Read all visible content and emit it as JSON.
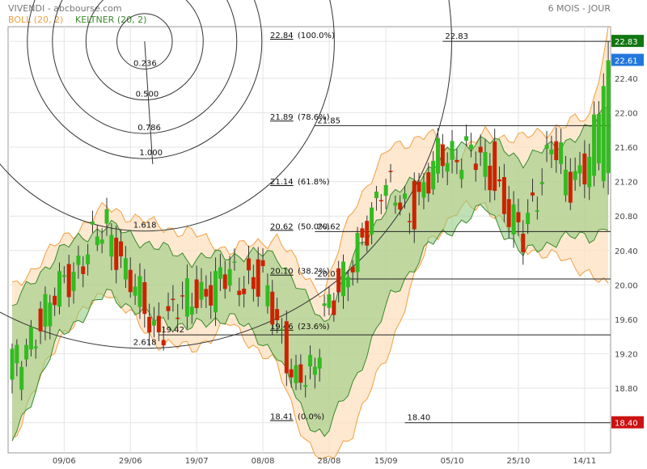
{
  "header": {
    "title": "VIVENDI - abcbourse.com",
    "period": "6 MOIS - JOUR",
    "legend_boll": "BOLL (20, 2)",
    "legend_keltner": "KELTNER (20, 2)"
  },
  "colors": {
    "up": "#33bb22",
    "down": "#cc2200",
    "boll_fill": "#fde0c0",
    "boll_line": "#f0a040",
    "keltner_fill": "#8cc878",
    "keltner_line": "#3a8a2a",
    "grid": "#e4e4e4",
    "tag_last": "#2277dd",
    "tag_high": "#117711",
    "tag_low": "#cc1111"
  },
  "chart_data": {
    "type": "candlestick",
    "title": "VIVENDI",
    "xlabel": "",
    "ylabel": "",
    "ylim": [
      18.05,
      23.0
    ],
    "y_ticks": [
      18.4,
      18.8,
      19.2,
      19.6,
      20.0,
      20.4,
      20.8,
      21.2,
      21.6,
      22.0,
      22.4,
      22.83
    ],
    "y_tick_labels": [
      "18.40",
      "18.80",
      "19.20",
      "19.60",
      "20.00",
      "20.40",
      "20.80",
      "21.20",
      "21.60",
      "22.00",
      "22.40",
      "22.83"
    ],
    "x_tick_labels": [
      "09/06",
      "29/06",
      "19/07",
      "08/08",
      "28/08",
      "15/09",
      "05/10",
      "25/10",
      "14/11"
    ],
    "x_tick_index": [
      11,
      25,
      39,
      53,
      67,
      79,
      93,
      107,
      121
    ],
    "n_days": 127,
    "grid": true,
    "price_tags": [
      {
        "value": 22.83,
        "label": "22.83",
        "kind": "high"
      },
      {
        "value": 22.61,
        "label": "22.61",
        "kind": "last"
      },
      {
        "value": 18.4,
        "label": "18.40",
        "kind": "low"
      }
    ],
    "fibonacci": [
      {
        "value": 22.84,
        "label": "22.84",
        "pct": "(100.0%)"
      },
      {
        "value": 21.89,
        "label": "21.89",
        "pct": "(78.6%)"
      },
      {
        "value": 21.14,
        "label": "21.14",
        "pct": "(61.8%)"
      },
      {
        "value": 20.62,
        "label": "20.62",
        "pct": "(50.0%)"
      },
      {
        "value": 20.1,
        "label": "20.10",
        "pct": "(38.2%)"
      },
      {
        "value": 19.46,
        "label": "19.46",
        "pct": "(23.6%)"
      },
      {
        "value": 18.41,
        "label": "18.41",
        "pct": "(0.0%)"
      }
    ],
    "hlines": [
      {
        "value": 22.83,
        "label": "22.83",
        "from_index": 91
      },
      {
        "value": 21.85,
        "label": "21.85",
        "from_index": 64
      },
      {
        "value": 20.62,
        "label": "20.62",
        "from_index": 64
      },
      {
        "value": 20.07,
        "label": "20.07",
        "from_index": 64
      },
      {
        "value": 19.42,
        "label": "19.42",
        "from_index": 31
      },
      {
        "value": 18.4,
        "label": "18.40",
        "from_index": 83
      }
    ],
    "fan_arcs": {
      "center_index": 28,
      "center_value": 22.83,
      "ratios": [
        0.236,
        0.5,
        0.786,
        1.0,
        1.618,
        2.618
      ],
      "labels": [
        "0.236",
        "0.500",
        "0.786",
        "1.000",
        "1.618",
        "2.618"
      ]
    },
    "anchors": {
      "open": [
        [
          0,
          18.8
        ],
        [
          10,
          19.9
        ],
        [
          20,
          20.65
        ],
        [
          30,
          19.55
        ],
        [
          36,
          19.75
        ],
        [
          46,
          20.05
        ],
        [
          53,
          20.2
        ],
        [
          60,
          19.0
        ],
        [
          64,
          18.85
        ],
        [
          66,
          19.7
        ],
        [
          72,
          20.15
        ],
        [
          78,
          21.1
        ],
        [
          84,
          20.95
        ],
        [
          90,
          21.35
        ],
        [
          96,
          21.5
        ],
        [
          102,
          21.45
        ],
        [
          108,
          20.55
        ],
        [
          114,
          21.6
        ],
        [
          118,
          21.2
        ],
        [
          122,
          21.35
        ],
        [
          126,
          21.3
        ]
      ],
      "close": [
        [
          0,
          19.05
        ],
        [
          10,
          19.95
        ],
        [
          20,
          20.7
        ],
        [
          30,
          19.45
        ],
        [
          36,
          19.8
        ],
        [
          46,
          20.1
        ],
        [
          53,
          20.0
        ],
        [
          60,
          18.9
        ],
        [
          64,
          18.95
        ],
        [
          66,
          19.75
        ],
        [
          72,
          20.2
        ],
        [
          78,
          21.2
        ],
        [
          84,
          20.8
        ],
        [
          90,
          21.45
        ],
        [
          96,
          21.6
        ],
        [
          102,
          21.2
        ],
        [
          108,
          20.5
        ],
        [
          114,
          21.7
        ],
        [
          118,
          21.1
        ],
        [
          122,
          21.55
        ],
        [
          126,
          22.61
        ]
      ],
      "high": [
        [
          0,
          19.2
        ],
        [
          10,
          20.2
        ],
        [
          20,
          20.85
        ],
        [
          30,
          19.65
        ],
        [
          36,
          20.0
        ],
        [
          46,
          20.25
        ],
        [
          53,
          20.35
        ],
        [
          60,
          19.1
        ],
        [
          64,
          19.4
        ],
        [
          66,
          19.85
        ],
        [
          72,
          20.3
        ],
        [
          78,
          21.25
        ],
        [
          84,
          21.05
        ],
        [
          90,
          21.55
        ],
        [
          96,
          21.7
        ],
        [
          102,
          21.6
        ],
        [
          108,
          20.65
        ],
        [
          114,
          21.85
        ],
        [
          118,
          21.4
        ],
        [
          122,
          21.65
        ],
        [
          126,
          22.83
        ]
      ],
      "low": [
        [
          0,
          18.7
        ],
        [
          10,
          19.75
        ],
        [
          20,
          20.5
        ],
        [
          30,
          19.3
        ],
        [
          36,
          19.55
        ],
        [
          46,
          19.9
        ],
        [
          53,
          19.85
        ],
        [
          60,
          18.75
        ],
        [
          64,
          18.65
        ],
        [
          66,
          19.45
        ],
        [
          72,
          19.95
        ],
        [
          78,
          21.0
        ],
        [
          84,
          20.7
        ],
        [
          90,
          21.2
        ],
        [
          96,
          21.35
        ],
        [
          102,
          21.05
        ],
        [
          108,
          20.35
        ],
        [
          114,
          21.45
        ],
        [
          118,
          20.75
        ],
        [
          122,
          21.1
        ],
        [
          126,
          21.05
        ]
      ],
      "boll_upper": [
        [
          0,
          19.95
        ],
        [
          10,
          20.5
        ],
        [
          20,
          20.9
        ],
        [
          30,
          20.7
        ],
        [
          38,
          20.6
        ],
        [
          46,
          20.4
        ],
        [
          56,
          20.55
        ],
        [
          62,
          20.1
        ],
        [
          66,
          19.9
        ],
        [
          72,
          20.9
        ],
        [
          80,
          21.6
        ],
        [
          88,
          21.75
        ],
        [
          94,
          21.5
        ],
        [
          100,
          21.75
        ],
        [
          108,
          21.7
        ],
        [
          116,
          21.85
        ],
        [
          122,
          21.95
        ],
        [
          126,
          22.95
        ]
      ],
      "boll_lower": [
        [
          0,
          18.2
        ],
        [
          10,
          19.4
        ],
        [
          20,
          19.95
        ],
        [
          30,
          19.35
        ],
        [
          38,
          19.25
        ],
        [
          46,
          19.55
        ],
        [
          56,
          19.05
        ],
        [
          62,
          18.2
        ],
        [
          66,
          17.9
        ],
        [
          72,
          18.3
        ],
        [
          80,
          19.3
        ],
        [
          88,
          20.5
        ],
        [
          94,
          20.85
        ],
        [
          100,
          20.95
        ],
        [
          108,
          20.45
        ],
        [
          116,
          20.3
        ],
        [
          122,
          20.15
        ],
        [
          126,
          19.95
        ]
      ],
      "kelt_upper": [
        [
          0,
          19.75
        ],
        [
          10,
          20.4
        ],
        [
          20,
          20.7
        ],
        [
          30,
          20.45
        ],
        [
          38,
          20.3
        ],
        [
          46,
          20.35
        ],
        [
          56,
          20.35
        ],
        [
          62,
          19.85
        ],
        [
          66,
          19.55
        ],
        [
          72,
          20.3
        ],
        [
          80,
          21.0
        ],
        [
          88,
          21.35
        ],
        [
          94,
          21.6
        ],
        [
          100,
          21.7
        ],
        [
          108,
          21.45
        ],
        [
          116,
          21.65
        ],
        [
          122,
          21.8
        ],
        [
          126,
          22.1
        ]
      ],
      "kelt_lower": [
        [
          0,
          18.2
        ],
        [
          10,
          19.4
        ],
        [
          20,
          19.9
        ],
        [
          30,
          19.6
        ],
        [
          38,
          19.5
        ],
        [
          46,
          19.65
        ],
        [
          56,
          19.2
        ],
        [
          62,
          18.45
        ],
        [
          66,
          18.25
        ],
        [
          72,
          18.85
        ],
        [
          80,
          19.85
        ],
        [
          88,
          20.45
        ],
        [
          94,
          20.7
        ],
        [
          100,
          20.9
        ],
        [
          108,
          20.35
        ],
        [
          116,
          20.55
        ],
        [
          122,
          20.55
        ],
        [
          126,
          20.7
        ]
      ]
    }
  }
}
